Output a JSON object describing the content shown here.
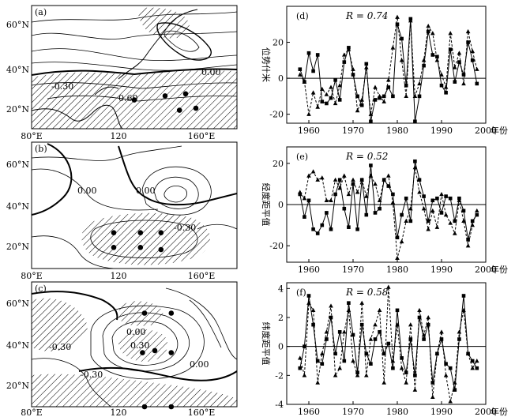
{
  "maps": [
    {
      "id": "a",
      "label": "(a)",
      "lat_ticks": [
        "60°N",
        "40°N",
        "20°N"
      ],
      "lon_ticks": [
        "80°E",
        "120",
        "160°E"
      ],
      "contour_labels": [
        "0.00",
        "-0.30",
        "0.60"
      ],
      "points": [
        [
          130,
          24
        ],
        [
          145,
          26
        ],
        [
          155,
          27
        ],
        [
          152,
          19
        ],
        [
          160,
          20
        ]
      ]
    },
    {
      "id": "b",
      "label": "(b)",
      "lat_ticks": [
        "60°N",
        "40°N",
        "20°N"
      ],
      "lon_ticks": [
        "80°E",
        "120",
        "160°E"
      ],
      "contour_labels": [
        "0.00",
        "0.00",
        "-0.30"
      ],
      "points": [
        [
          120,
          27
        ],
        [
          133,
          27
        ],
        [
          143,
          27
        ],
        [
          120,
          20
        ],
        [
          133,
          20
        ],
        [
          143,
          19
        ]
      ]
    },
    {
      "id": "c",
      "label": "(c)",
      "lat_ticks": [
        "60°N",
        "40°N",
        "20°N"
      ],
      "lon_ticks": [
        "80°E",
        "120",
        "160°E"
      ],
      "contour_labels": [
        "-0.30",
        "0.00",
        "0.30",
        "-0.30",
        "0.00"
      ],
      "points": [
        [
          135,
          55
        ],
        [
          148,
          55
        ],
        [
          140,
          37
        ],
        [
          148,
          36
        ],
        [
          134,
          36
        ],
        [
          135,
          10
        ],
        [
          148,
          10
        ]
      ]
    }
  ],
  "chart_data": [
    {
      "id": "d",
      "type": "line",
      "panel_label": "(d)",
      "annotation": "R = 0.74",
      "ylabel": "位势什米",
      "xlabel": "年份",
      "xlim": [
        1955,
        2000
      ],
      "ylim": [
        -25,
        40
      ],
      "x_ticks": [
        1960,
        1970,
        1980,
        1990,
        2000
      ],
      "y_ticks": [
        -20,
        0,
        20
      ],
      "series": [
        {
          "marker": "square",
          "line": "solid",
          "x": [
            1958,
            1959,
            1960,
            1961,
            1962,
            1963,
            1964,
            1965,
            1966,
            1967,
            1968,
            1969,
            1970,
            1971,
            1972,
            1973,
            1974,
            1975,
            1976,
            1977,
            1978,
            1979,
            1980,
            1981,
            1982,
            1983,
            1984,
            1985,
            1986,
            1987,
            1988,
            1989,
            1990,
            1991,
            1992,
            1993,
            1994,
            1995,
            1996,
            1997,
            1998
          ],
          "y": [
            5,
            -2,
            14,
            4,
            13,
            -13,
            -14,
            -11,
            -1,
            -12,
            9,
            17,
            2,
            -10,
            -15,
            8,
            -24,
            -12,
            -11,
            -10,
            -5,
            -10,
            30,
            22,
            -4,
            33,
            -24,
            -10,
            7,
            26,
            13,
            12,
            -4,
            -8,
            16,
            -2,
            9,
            2,
            20,
            10,
            -3
          ]
        },
        {
          "marker": "triangle",
          "line": "dashed",
          "x": [
            1958,
            1959,
            1960,
            1961,
            1962,
            1963,
            1964,
            1965,
            1966,
            1967,
            1968,
            1969,
            1970,
            1971,
            1972,
            1973,
            1974,
            1975,
            1976,
            1977,
            1978,
            1979,
            1980,
            1981,
            1982,
            1983,
            1984,
            1985,
            1986,
            1987,
            1988,
            1989,
            1990,
            1991,
            1992,
            1993,
            1994,
            1995,
            1996,
            1997,
            1998
          ],
          "y": [
            2,
            -2,
            -20,
            -8,
            -16,
            -6,
            -9,
            -5,
            -14,
            -4,
            13,
            16,
            5,
            -18,
            -12,
            6,
            -20,
            -5,
            -10,
            -13,
            -1,
            17,
            34,
            10,
            -10,
            32,
            -10,
            -3,
            10,
            29,
            25,
            10,
            2,
            -5,
            25,
            6,
            14,
            -3,
            26,
            15,
            5
          ]
        }
      ]
    },
    {
      "id": "e",
      "type": "line",
      "panel_label": "(e)",
      "annotation": "R = 0.52",
      "ylabel": "经度距平值",
      "xlabel": "年份",
      "xlim": [
        1955,
        2000
      ],
      "ylim": [
        -28,
        28
      ],
      "x_ticks": [
        1960,
        1970,
        1980,
        1990,
        2000
      ],
      "y_ticks": [
        -20,
        0,
        20
      ],
      "series": [
        {
          "marker": "square",
          "line": "solid",
          "x": [
            1958,
            1959,
            1960,
            1961,
            1962,
            1963,
            1964,
            1965,
            1966,
            1967,
            1968,
            1969,
            1970,
            1971,
            1972,
            1973,
            1974,
            1975,
            1976,
            1977,
            1978,
            1979,
            1980,
            1981,
            1982,
            1983,
            1984,
            1985,
            1986,
            1987,
            1988,
            1989,
            1990,
            1991,
            1992,
            1993,
            1994,
            1995,
            1996,
            1997,
            1998
          ],
          "y": [
            5,
            -6,
            2,
            -12,
            -14,
            -10,
            -4,
            -12,
            5,
            12,
            -2,
            -11,
            10,
            -12,
            12,
            -5,
            19,
            -4,
            -2,
            12,
            9,
            5,
            -16,
            -5,
            3,
            -8,
            21,
            12,
            4,
            -8,
            2,
            3,
            -4,
            4,
            3,
            -8,
            3,
            -3,
            -17,
            -8,
            -5
          ]
        },
        {
          "marker": "triangle",
          "line": "dashed",
          "x": [
            1958,
            1959,
            1960,
            1961,
            1962,
            1963,
            1964,
            1965,
            1966,
            1967,
            1968,
            1969,
            1970,
            1971,
            1972,
            1973,
            1974,
            1975,
            1976,
            1977,
            1978,
            1979,
            1980,
            1981,
            1982,
            1983,
            1984,
            1985,
            1986,
            1987,
            1988,
            1989,
            1990,
            1991,
            1992,
            1993,
            1994,
            1995,
            1996,
            1997,
            1998
          ],
          "y": [
            6,
            3,
            14,
            16,
            12,
            13,
            2,
            2,
            12,
            8,
            14,
            5,
            12,
            6,
            12,
            4,
            14,
            10,
            2,
            12,
            14,
            1,
            -26,
            -18,
            -8,
            -2,
            18,
            6,
            -2,
            -12,
            -3,
            -11,
            5,
            -5,
            -9,
            -14,
            2,
            -8,
            -20,
            -10,
            -3
          ]
        }
      ]
    },
    {
      "id": "f",
      "type": "line",
      "panel_label": "(f)",
      "annotation": "R = 0.58",
      "ylabel": "纬度距平值",
      "xlabel": "年份",
      "xlim": [
        1955,
        2000
      ],
      "ylim": [
        -4,
        4.4
      ],
      "x_ticks": [
        1960,
        1970,
        1980,
        1990,
        2000
      ],
      "y_ticks": [
        -4,
        -2,
        0,
        2,
        4
      ],
      "series": [
        {
          "marker": "square",
          "line": "solid",
          "x": [
            1958,
            1959,
            1960,
            1961,
            1962,
            1963,
            1964,
            1965,
            1966,
            1967,
            1968,
            1969,
            1970,
            1971,
            1972,
            1973,
            1974,
            1975,
            1976,
            1977,
            1978,
            1979,
            1980,
            1981,
            1982,
            1983,
            1984,
            1985,
            1986,
            1987,
            1988,
            1989,
            1990,
            1991,
            1992,
            1993,
            1994,
            1995,
            1996,
            1997,
            1998
          ],
          "y": [
            -1.5,
            0,
            3.5,
            1.5,
            -1,
            -1.2,
            0.5,
            2,
            -0.5,
            1,
            -1,
            3,
            0.8,
            -1.8,
            1.5,
            -0.5,
            -1.2,
            0.5,
            1,
            -0.5,
            0.2,
            -1.5,
            2.5,
            -0.8,
            -1.8,
            0.5,
            -2,
            2,
            0.5,
            1.5,
            -2.5,
            -0.5,
            0.5,
            -1.2,
            -1.5,
            -3,
            0.5,
            3.5,
            -0.5,
            -1,
            -1.5
          ]
        },
        {
          "marker": "triangle",
          "line": "dashed",
          "x": [
            1958,
            1959,
            1960,
            1961,
            1962,
            1963,
            1964,
            1965,
            1966,
            1967,
            1968,
            1969,
            1970,
            1971,
            1972,
            1973,
            1974,
            1975,
            1976,
            1977,
            1978,
            1979,
            1980,
            1981,
            1982,
            1983,
            1984,
            1985,
            1986,
            1987,
            1988,
            1989,
            1990,
            1991,
            1992,
            1993,
            1994,
            1995,
            1996,
            1997,
            1998
          ],
          "y": [
            -0.8,
            -2,
            3,
            2.5,
            -2.5,
            -0.5,
            1,
            2.8,
            -2,
            -1.5,
            1,
            2.5,
            -1,
            -2,
            3,
            -2,
            0.5,
            1.5,
            2.5,
            -2.5,
            4.1,
            -1,
            1.5,
            -1.5,
            -2.5,
            1.5,
            -3,
            2.5,
            0.8,
            2,
            -3.5,
            -0.5,
            1,
            -2,
            -3.8,
            -2.5,
            1,
            2.5,
            -0.5,
            -1.5,
            -1
          ]
        }
      ]
    }
  ]
}
